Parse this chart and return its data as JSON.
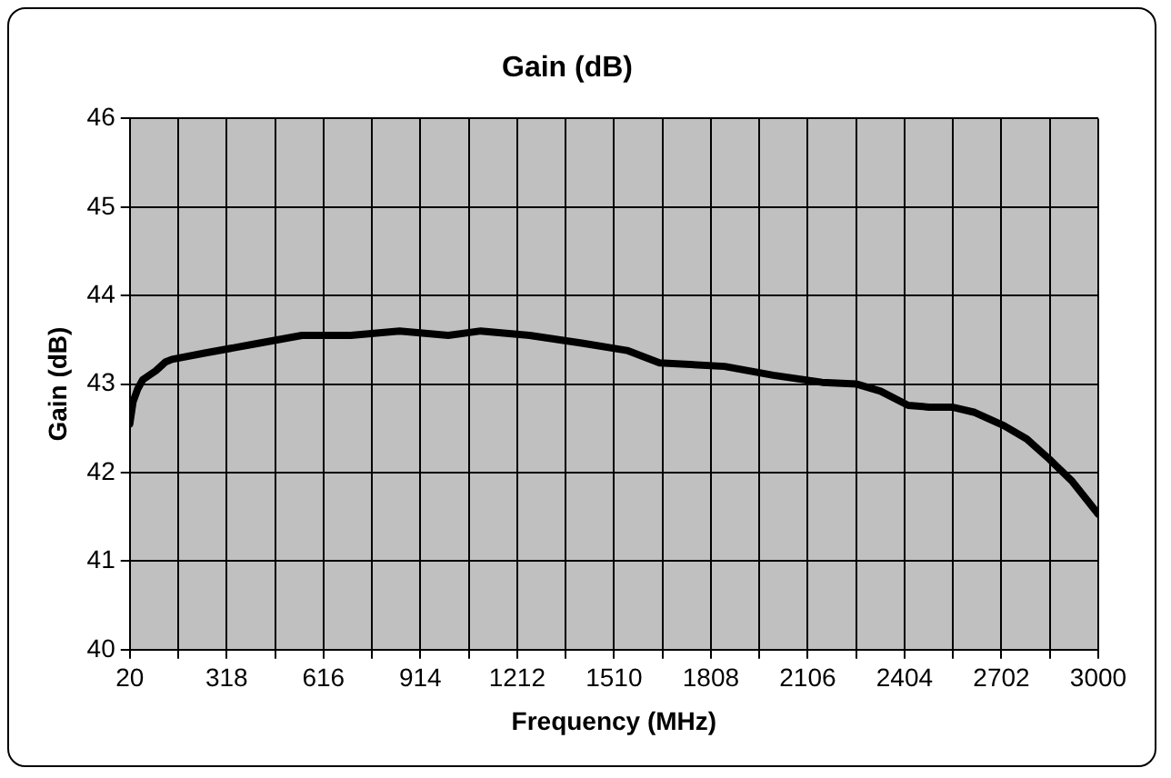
{
  "chart_data": {
    "type": "line",
    "title": "Gain (dB)",
    "xlabel": "Frequency (MHz)",
    "ylabel": "Gain (dB)",
    "xlim": [
      20,
      3000
    ],
    "xticks": [
      20,
      {
        "value": 169,
        "label": null
      },
      318,
      {
        "value": 467,
        "label": null
      },
      616,
      {
        "value": 765,
        "label": null
      },
      914,
      {
        "value": 1063,
        "label": null
      },
      1212,
      {
        "value": 1361,
        "label": null
      },
      1510,
      {
        "value": 1659,
        "label": null
      },
      1808,
      {
        "value": 1957,
        "label": null
      },
      2106,
      {
        "value": 2255,
        "label": null
      },
      2404,
      {
        "value": 2553,
        "label": null
      },
      2702,
      {
        "value": 2851,
        "label": null
      },
      3000
    ],
    "ylim": [
      40,
      46
    ],
    "yticks": [
      40,
      41,
      42,
      43,
      44,
      45,
      46
    ],
    "grid": true,
    "legend": false,
    "marker": "none",
    "line_style": "solid",
    "series": [
      {
        "color": "#000000",
        "x": [
          20,
          30,
          45,
          60,
          100,
          130,
          150,
          250,
          400,
          550,
          700,
          850,
          1000,
          1100,
          1250,
          1415,
          1550,
          1650,
          1850,
          2000,
          2150,
          2257,
          2330,
          2415,
          2480,
          2550,
          2620,
          2710,
          2780,
          2850,
          2920,
          3000
        ],
        "values": [
          42.55,
          42.8,
          42.95,
          43.05,
          43.15,
          43.25,
          43.28,
          43.35,
          43.45,
          43.55,
          43.55,
          43.6,
          43.55,
          43.6,
          43.55,
          43.46,
          43.38,
          43.24,
          43.2,
          43.1,
          43.02,
          43.0,
          42.92,
          42.76,
          42.74,
          42.74,
          42.68,
          42.53,
          42.38,
          42.15,
          41.9,
          41.53
        ]
      }
    ]
  }
}
